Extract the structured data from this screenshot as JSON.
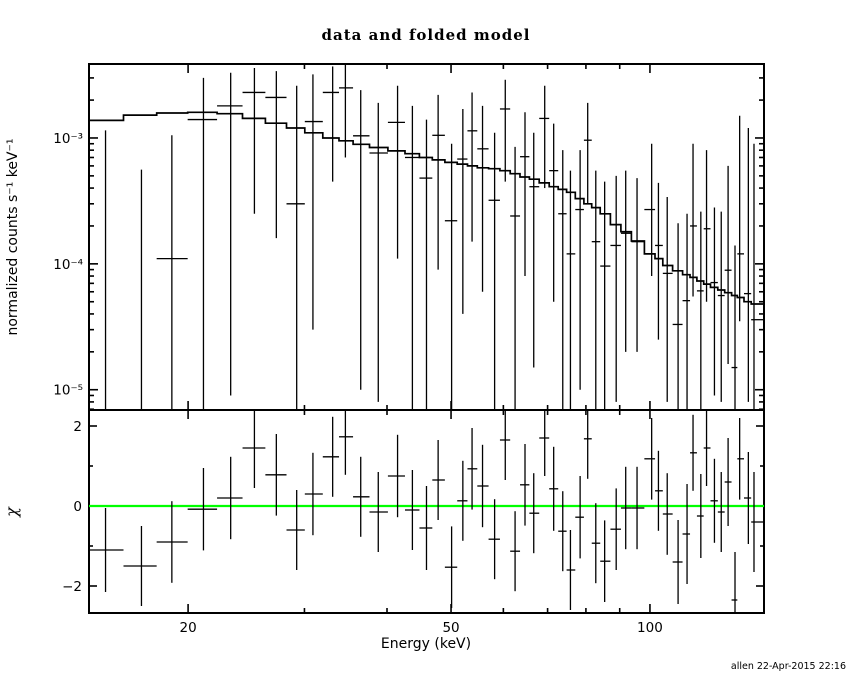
{
  "chart_data": {
    "type": "line",
    "subtype": "xspec-data-and-folded-model",
    "title": "data and folded model",
    "xlabel": "Energy (keV)",
    "ylabel_top": "normalized counts s⁻¹ keV⁻¹",
    "ylabel_bottom": "χ",
    "stamp": "allen 22-Apr-2015 22:16",
    "x_scale": "log",
    "x_range": [
      14.16,
      148.8
    ],
    "y_top_scale": "log",
    "y_top_range": [
      6.9e-06,
      0.00387
    ],
    "y_bottom_scale": "linear",
    "y_bottom_range": [
      -2.675,
      2.4
    ],
    "grid": false,
    "x_ticks": [
      {
        "v": 20,
        "label": "20"
      },
      {
        "v": 50,
        "label": "50"
      },
      {
        "v": 100,
        "label": "100"
      }
    ],
    "x_minor_ticks": [
      30,
      40,
      60,
      70,
      80,
      90
    ],
    "y_ticks_top": [
      {
        "v": 0.001,
        "label": "10⁻³"
      },
      {
        "v": 0.0001,
        "label": "10⁻⁴"
      },
      {
        "v": 1e-05,
        "label": "10⁻⁵"
      }
    ],
    "y_ticks_bottom": [
      {
        "v": 2,
        "label": "2"
      },
      {
        "v": 0,
        "label": "0"
      },
      {
        "v": -2,
        "label": "−2"
      }
    ],
    "y_minor_ticks_bottom": [
      1,
      -1
    ],
    "zero_line": {
      "value": 0,
      "color": "#00ff00"
    },
    "line_color": "#000000",
    "bins": {
      "energy": [
        15.0,
        17.0,
        18.9,
        21.1,
        23.2,
        25.2,
        27.2,
        29.2,
        30.9,
        33.1,
        34.6,
        36.5,
        38.8,
        41.5,
        43.7,
        45.9,
        47.8,
        50.1,
        52.1,
        53.8,
        55.8,
        58.2,
        60.4,
        62.5,
        64.7,
        66.7,
        69.3,
        71.5,
        73.8,
        75.8,
        78.4,
        80.5,
        82.8,
        85.4,
        88.9,
        91.9,
        95.6,
        100.6,
        103.0,
        106.2,
        110.3,
        113.8,
        116.2,
        119.4,
        121.8,
        125.2,
        128.2,
        131.3,
        134.5,
        136.7,
        140.9,
        143.7
      ],
      "model": [
        0.00138,
        0.00152,
        0.00158,
        0.0016,
        0.00156,
        0.00143,
        0.00131,
        0.0012,
        0.0011,
        0.001,
        0.00095,
        0.00089,
        0.00084,
        0.00079,
        0.00075,
        0.0007,
        0.00067,
        0.00064,
        0.00062,
        0.0006,
        0.00058,
        0.00057,
        0.00055,
        0.00052,
        0.00049,
        0.00047,
        0.00044,
        0.00041,
        0.00039,
        0.00037,
        0.00033,
        0.0003,
        0.00028,
        0.00025,
        0.000205,
        0.00018,
        0.000152,
        0.00012,
        0.00011,
        9.7e-05,
        8.8e-05,
        8.2e-05,
        7.8e-05,
        7.3e-05,
        6.9e-05,
        6.5e-05,
        6.2e-05,
        5.9e-05,
        5.6e-05,
        5.4e-05,
        5e-05,
        4.8e-05
      ],
      "data_value": [
        null,
        null,
        0.00011,
        0.0014,
        0.0018,
        0.0023,
        0.0021,
        0.0003,
        0.00135,
        0.0023,
        0.0025,
        0.00104,
        0.00076,
        0.00133,
        0.0007,
        0.00048,
        0.00105,
        0.00022,
        0.00068,
        0.00114,
        0.00082,
        0.00032,
        0.0017,
        0.00024,
        0.00071,
        0.00041,
        0.00143,
        0.00055,
        0.00025,
        0.00012,
        0.00027,
        0.00096,
        0.00015,
        9.6e-05,
        0.00014,
        0.000175,
        0.00015,
        0.00027,
        0.00014,
        8.4e-05,
        3.3e-05,
        5.1e-05,
        0.0002,
        6.1e-05,
        0.00019,
        7.1e-05,
        5.6e-05,
        8.9e-05,
        1.5e-05,
        0.00012,
        5.8e-05,
        3.6e-05
      ],
      "data_hi": [
        0.00115,
        0.00056,
        0.00105,
        0.003,
        0.0033,
        0.0036,
        0.0034,
        0.0026,
        0.0032,
        0.0037,
        0.0038,
        0.0024,
        0.0019,
        0.0026,
        0.0018,
        0.0014,
        0.0022,
        0.0009,
        0.0017,
        0.0023,
        0.0018,
        0.0011,
        0.0029,
        0.00085,
        0.0016,
        0.0011,
        0.0026,
        0.0013,
        0.0008,
        0.00055,
        0.0008,
        0.0019,
        0.00055,
        0.00045,
        0.0005,
        0.00055,
        0.00048,
        0.0009,
        0.00044,
        0.00034,
        0.00021,
        0.00025,
        0.0009,
        0.00026,
        0.0008,
        0.00028,
        0.00026,
        0.0006,
        0.00014,
        0.0015,
        0.0012,
        0.0009
      ],
      "data_lo": [
        1e-06,
        1e-06,
        5e-06,
        6e-06,
        9e-06,
        0.00025,
        0.00016,
        5e-06,
        3e-05,
        0.00045,
        0.0007,
        1e-05,
        8e-06,
        0.00011,
        7e-06,
        7e-06,
        9e-05,
        7e-06,
        4e-05,
        0.00015,
        6e-05,
        7e-06,
        0.00045,
        7e-06,
        8e-05,
        1.5e-05,
        0.0004,
        5e-05,
        7e-06,
        7e-06,
        1e-05,
        0.0003,
        7e-06,
        7e-06,
        8e-06,
        2e-05,
        2e-05,
        8e-05,
        2.5e-05,
        8e-06,
        7e-06,
        7e-06,
        5.5e-05,
        7e-06,
        5e-05,
        9e-06,
        8e-06,
        1.6e-05,
        7e-06,
        3.5e-05,
        8e-06,
        7e-06
      ],
      "chi": [
        -1.1,
        -1.5,
        -0.9,
        -0.08,
        0.2,
        1.45,
        0.78,
        -0.6,
        0.3,
        1.23,
        1.73,
        0.23,
        -0.15,
        0.75,
        -0.1,
        -0.55,
        0.65,
        -1.53,
        0.13,
        0.93,
        0.5,
        -0.83,
        1.65,
        -1.13,
        0.53,
        -0.18,
        1.7,
        0.43,
        -0.63,
        -1.6,
        -0.28,
        1.68,
        -0.93,
        -1.38,
        -0.58,
        -0.05,
        -0.05,
        1.18,
        0.38,
        -0.2,
        -1.4,
        -0.7,
        1.33,
        -0.25,
        1.45,
        0.13,
        -0.15,
        0.6,
        -2.35,
        1.18,
        0.2,
        -0.4
      ],
      "chi_err": [
        1.05,
        1.0,
        1.02,
        1.03,
        1.03,
        1.0,
        1.02,
        1.0,
        1.03,
        1.0,
        0.95,
        1.0,
        1.0,
        1.03,
        1.0,
        1.05,
        1.0,
        1.02,
        1.0,
        1.02,
        1.03,
        1.0,
        1.0,
        1.0,
        1.02,
        1.0,
        0.95,
        1.05,
        1.0,
        1.0,
        1.03,
        1.0,
        1.0,
        1.02,
        1.02,
        1.03,
        1.03,
        1.02,
        1.0,
        1.02,
        1.05,
        1.25,
        0.95,
        1.05,
        0.95,
        1.05,
        1.0,
        1.1,
        1.2,
        1.02,
        1.15,
        1.25
      ]
    }
  }
}
